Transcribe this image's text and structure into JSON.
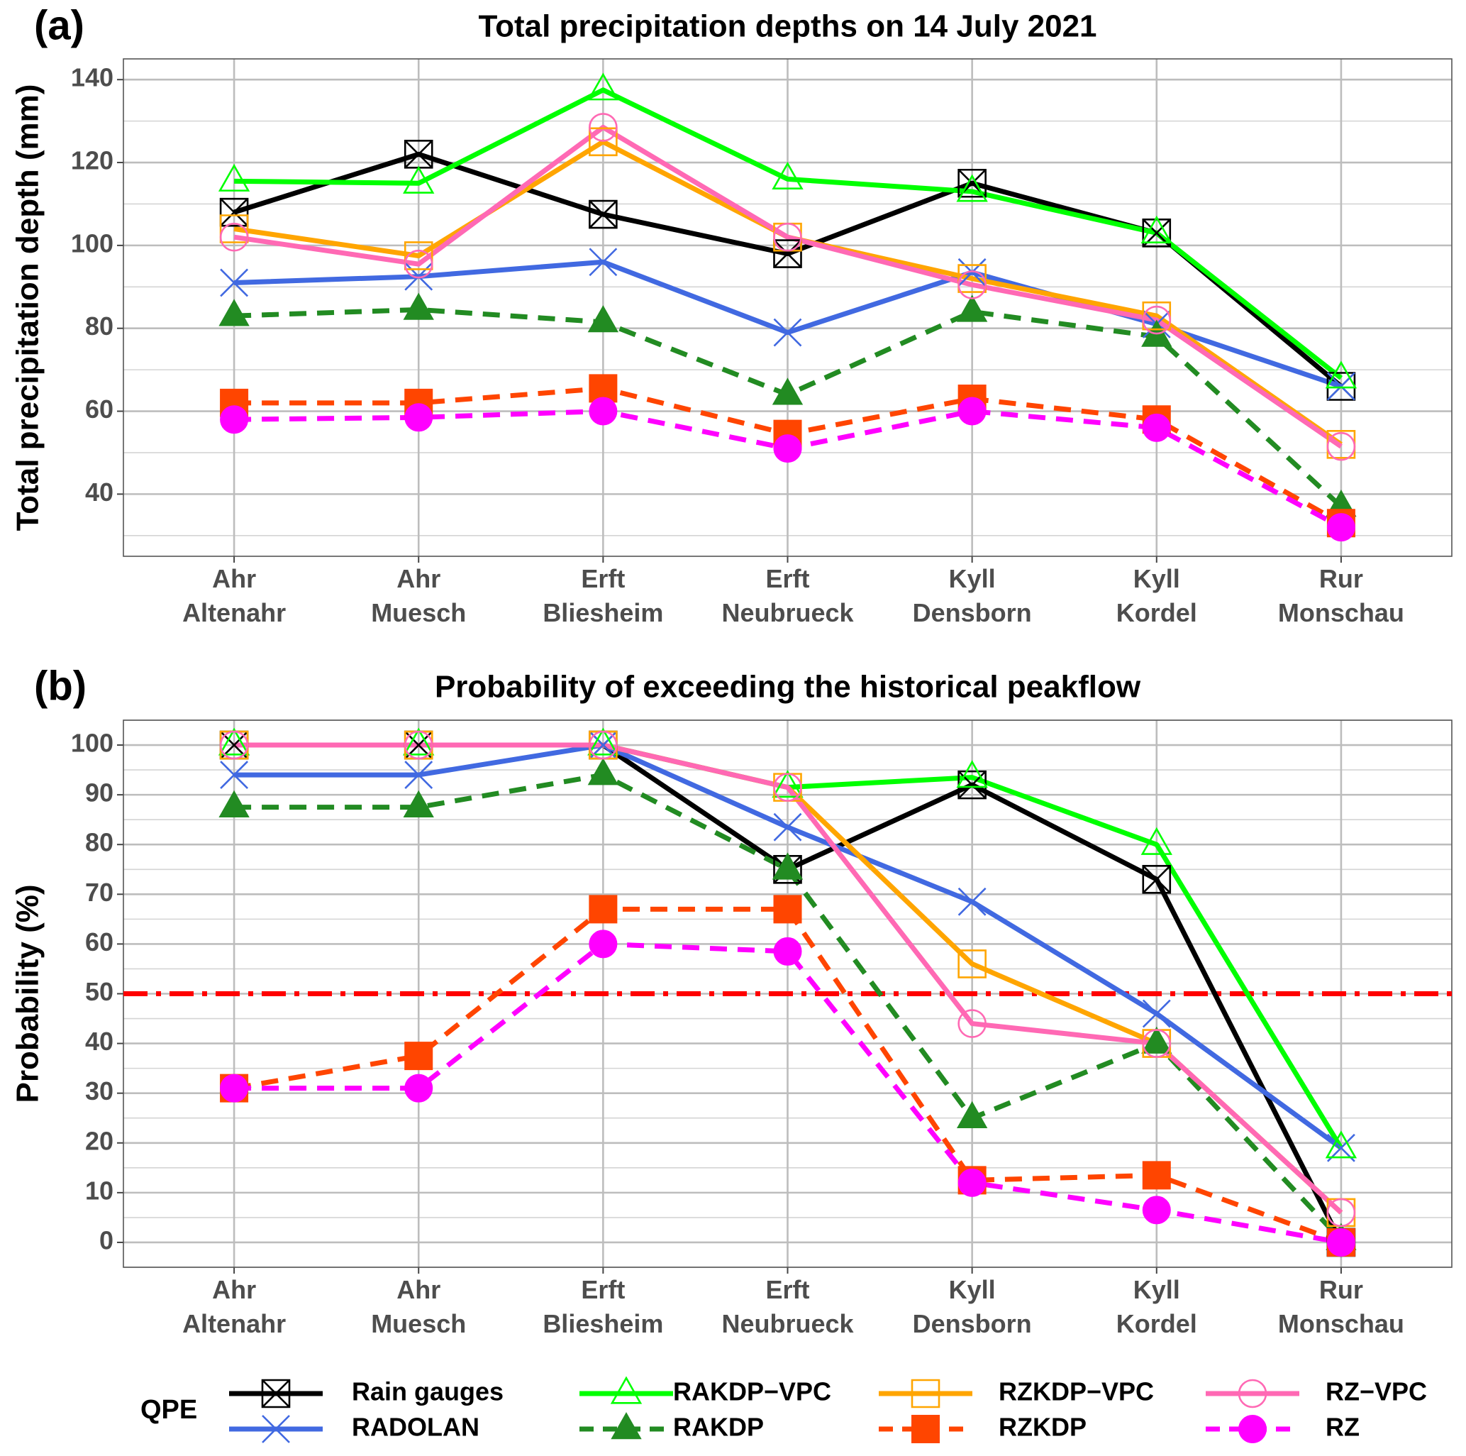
{
  "chart_data": [
    {
      "type": "line",
      "panel_label": "(a)",
      "title": "Total precipitation depths on 14 July 2021",
      "y_label": "Total precipitation depth (mm)",
      "categories": [
        [
          "Ahr",
          "Altenahr"
        ],
        [
          "Ahr",
          "Muesch"
        ],
        [
          "Erft",
          "Bliesheim"
        ],
        [
          "Erft",
          "Neubrueck"
        ],
        [
          "Kyll",
          "Densborn"
        ],
        [
          "Kyll",
          "Kordel"
        ],
        [
          "Rur",
          "Monschau"
        ]
      ],
      "ylim": [
        25,
        145
      ],
      "yticks": [
        40,
        60,
        80,
        100,
        120,
        140
      ],
      "grid": true,
      "series": [
        {
          "name": "Rain gauges",
          "color": "#000000",
          "line_style": "solid",
          "marker": "square-x",
          "values": [
            108,
            122,
            107.5,
            98,
            115,
            103,
            66
          ]
        },
        {
          "name": "RADOLAN",
          "color": "#4169e1",
          "line_style": "solid",
          "marker": "x",
          "values": [
            91,
            92.5,
            96,
            79,
            93.5,
            81,
            66
          ]
        },
        {
          "name": "RAKDP−VPC",
          "color": "#00ff00",
          "line_style": "solid",
          "marker": "triangle-open",
          "values": [
            115.5,
            115,
            137.5,
            116,
            113,
            103,
            68
          ]
        },
        {
          "name": "RAKDP",
          "color": "#228b22",
          "line_style": "dashed",
          "marker": "triangle",
          "values": [
            83,
            84.5,
            81.5,
            64,
            84,
            78,
            37
          ]
        },
        {
          "name": "RZKDP−VPC",
          "color": "#ffa500",
          "line_style": "solid",
          "marker": "square-open",
          "values": [
            104,
            97.5,
            125,
            102,
            92,
            83,
            52
          ]
        },
        {
          "name": "RZKDP",
          "color": "#ff4500",
          "line_style": "dashed",
          "marker": "square",
          "values": [
            62,
            62,
            65.5,
            54.5,
            63,
            58,
            33
          ]
        },
        {
          "name": "RZ−VPC",
          "color": "#ff69b4",
          "line_style": "solid",
          "marker": "circle-open",
          "values": [
            102,
            95.5,
            128.5,
            102,
            90.5,
            82,
            51.5
          ]
        },
        {
          "name": "RZ",
          "color": "#ff00ff",
          "line_style": "dashed",
          "marker": "circle",
          "values": [
            58,
            58.5,
            60,
            51,
            60,
            56,
            32
          ]
        }
      ]
    },
    {
      "type": "line",
      "panel_label": "(b)",
      "title": "Probability of exceeding the historical peakflow",
      "y_label": "Probability (%)",
      "categories": [
        [
          "Ahr",
          "Altenahr"
        ],
        [
          "Ahr",
          "Muesch"
        ],
        [
          "Erft",
          "Bliesheim"
        ],
        [
          "Erft",
          "Neubrueck"
        ],
        [
          "Kyll",
          "Densborn"
        ],
        [
          "Kyll",
          "Kordel"
        ],
        [
          "Rur",
          "Monschau"
        ]
      ],
      "ylim": [
        -5,
        105
      ],
      "yticks": [
        0,
        10,
        20,
        30,
        40,
        50,
        60,
        70,
        80,
        90,
        100
      ],
      "grid": true,
      "hline": {
        "value": 50,
        "color": "#ff0000",
        "line_style": "dotdash"
      },
      "series": [
        {
          "color": "#000000",
          "line_style": "solid",
          "marker": "square-x",
          "values": [
            100,
            100,
            100,
            75,
            92,
            73,
            0
          ]
        },
        {
          "color": "#4169e1",
          "line_style": "solid",
          "marker": "x",
          "values": [
            94,
            94,
            100,
            83.5,
            68.5,
            46,
            19
          ]
        },
        {
          "color": "#00ff00",
          "line_style": "solid",
          "marker": "triangle-open",
          "values": [
            100,
            100,
            100,
            91.5,
            93.5,
            80,
            19
          ]
        },
        {
          "color": "#228b22",
          "line_style": "dashed",
          "marker": "triangle",
          "values": [
            87.5,
            87.5,
            94,
            75,
            25,
            40,
            0.5
          ]
        },
        {
          "color": "#ffa500",
          "line_style": "solid",
          "marker": "square-open",
          "values": [
            100,
            100,
            100,
            91.5,
            56,
            40,
            6
          ]
        },
        {
          "color": "#ff4500",
          "line_style": "dashed",
          "marker": "square",
          "values": [
            31,
            37.5,
            67,
            67,
            12.5,
            13.5,
            0
          ]
        },
        {
          "color": "#ff69b4",
          "line_style": "solid",
          "marker": "circle-open",
          "values": [
            100,
            100,
            100,
            91.5,
            44,
            40,
            6
          ]
        },
        {
          "color": "#ff00ff",
          "line_style": "dashed",
          "marker": "circle",
          "values": [
            31,
            31,
            60,
            58.5,
            12,
            6.5,
            0
          ]
        }
      ]
    }
  ],
  "legend": {
    "title": "QPE",
    "position": "bottom"
  }
}
